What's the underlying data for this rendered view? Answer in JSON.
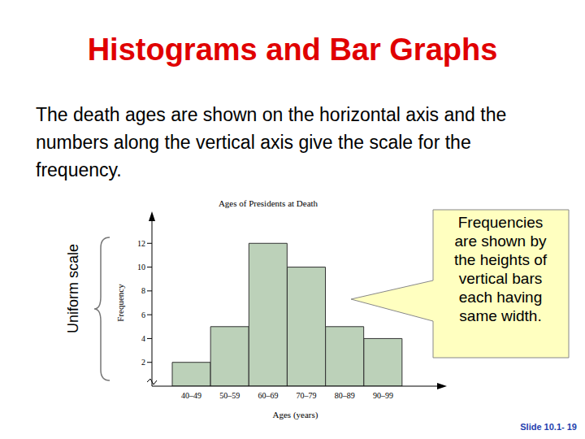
{
  "title": "Histograms and Bar Graphs",
  "body": "The death ages are shown on the horizontal axis and the numbers along the vertical axis give the scale for the frequency.",
  "side_label": "Uniform scale",
  "callout": "Frequencies are shown by the heights of vertical bars each having same width.",
  "slide_number": "Slide 10.1- 19",
  "chart_data": {
    "type": "histogram",
    "title": "Ages of Presidents at Death",
    "x_label": "Ages (years)",
    "y_label": "Frequency",
    "categories": [
      "40–49",
      "50–59",
      "60–69",
      "70–79",
      "80–89",
      "90–99"
    ],
    "values": [
      2,
      5,
      12,
      10,
      5,
      4
    ],
    "color": "#bcd1b9",
    "ylim": [
      0,
      14
    ],
    "yticks": [
      2,
      4,
      6,
      8,
      10,
      12
    ],
    "grid": false
  }
}
